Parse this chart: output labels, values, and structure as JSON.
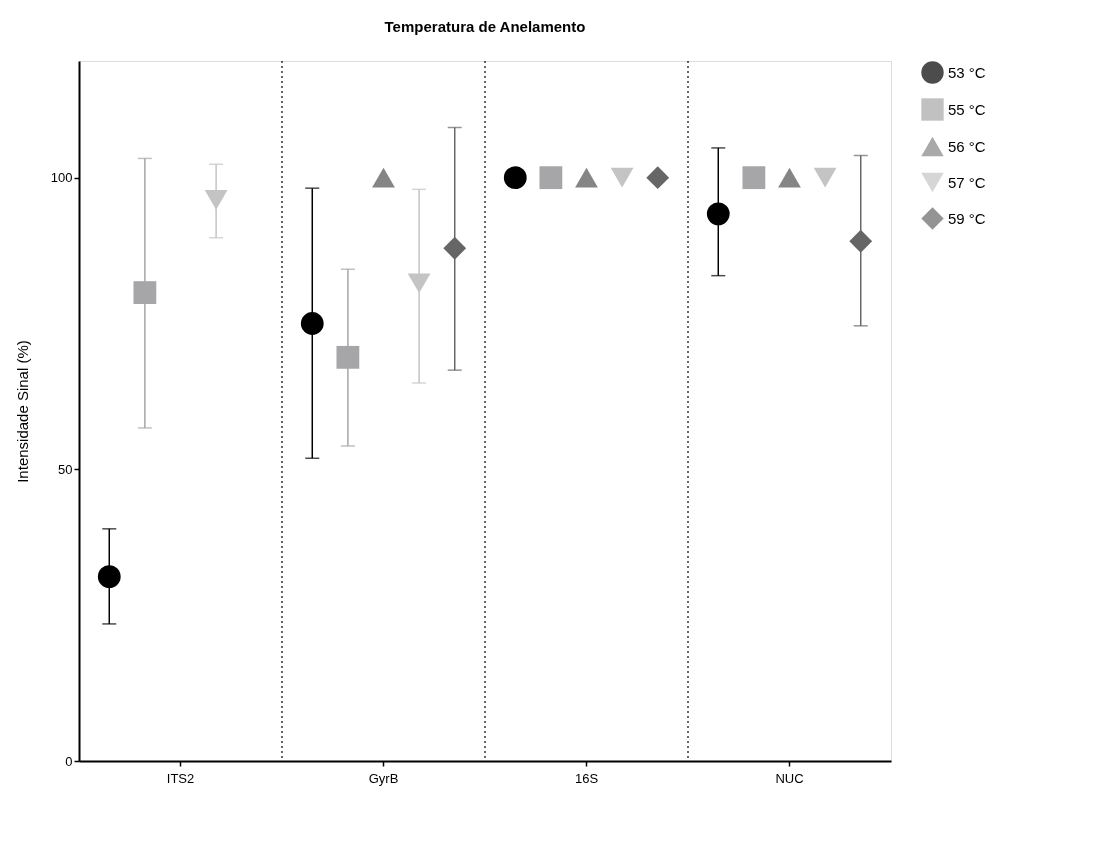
{
  "chart_data": {
    "type": "scatter",
    "title": "Temperatura de Anelamento",
    "ylabel": "Intensidade Sinal (%)",
    "categories": [
      "ITS2",
      "GyrB",
      "16S",
      "NUC"
    ],
    "ylim": [
      0,
      120
    ],
    "yticks": [
      0,
      50,
      100
    ],
    "grid": "x",
    "line_style": "dotted",
    "legend": "right",
    "series": [
      {
        "name": "53 °C",
        "color": "#000000",
        "marker": "circle",
        "values": [
          31.6,
          75.0,
          100,
          93.8
        ],
        "errors": [
          [
            23.5,
            39.8
          ],
          [
            51.9,
            98.2
          ],
          null,
          [
            83.2,
            105.1
          ]
        ]
      },
      {
        "name": "55 °C",
        "color": "#a6a6a8",
        "marker": "square",
        "values": [
          80.3,
          69.2,
          100,
          100
        ],
        "errors": [
          [
            57.1,
            103.3
          ],
          [
            54.0,
            84.3
          ],
          null,
          null
        ]
      },
      {
        "name": "56 °C",
        "color": "#858585",
        "marker": "triangle",
        "values": [
          null,
          100,
          100,
          100
        ],
        "errors": [
          null,
          null,
          null,
          null
        ]
      },
      {
        "name": "57 °C",
        "color": "#c4c4c4",
        "marker": "triangle-down",
        "values": [
          96.2,
          81.9,
          100,
          100
        ],
        "errors": [
          [
            89.7,
            102.3
          ],
          [
            64.8,
            98.0
          ],
          null,
          null
        ]
      },
      {
        "name": "59 °C",
        "color": "#666666",
        "marker": "diamond",
        "values": [
          null,
          87.9,
          100,
          89.1
        ],
        "errors": [
          null,
          [
            67.0,
            108.6
          ],
          null,
          [
            74.6,
            103.8
          ]
        ]
      }
    ]
  }
}
